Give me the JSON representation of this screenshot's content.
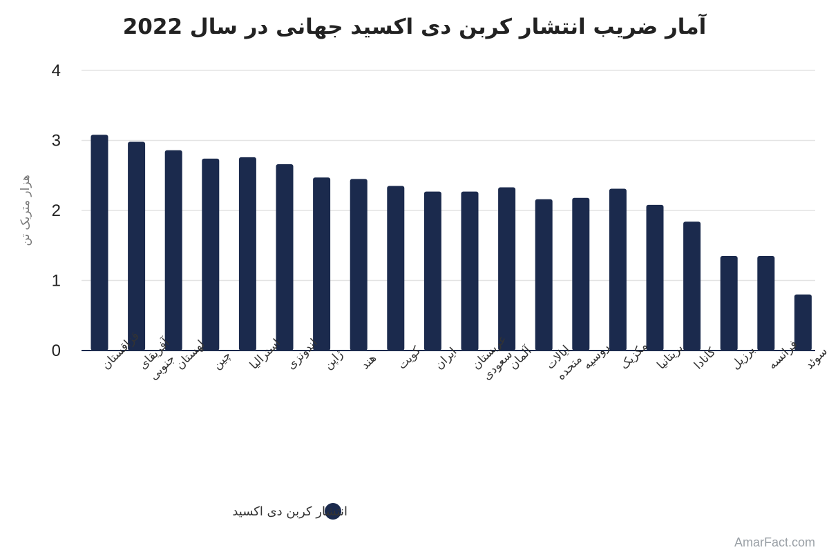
{
  "chart_data": {
    "type": "bar",
    "title": "آمار ضریب انتشار کربن دی اکسید جهانی در سال 2022",
    "ylabel": "هزار متریک تن",
    "xlabel": "",
    "ylim": [
      0,
      4
    ],
    "yticks": [
      "0",
      "1",
      "2",
      "3",
      "4"
    ],
    "grid": true,
    "legend_position": "bottom",
    "categories": [
      "قزاقستان",
      "آفریقای جنوبی",
      "لهستان",
      "چین",
      "استرالیا",
      "اندونزی",
      "ژاپن",
      "هند",
      "کویت",
      "ایران",
      "عربستان سعودی",
      "آلمان",
      "ایالات متحده",
      "روسیه",
      "مکزیک",
      "بریتانیا",
      "کانادا",
      "برزیل",
      "فرانسه",
      "سوئد"
    ],
    "series": [
      {
        "name": "انتشار کربن دی اکسید",
        "color": "#1b2a4d",
        "values": [
          3.08,
          2.98,
          2.86,
          2.74,
          2.76,
          2.66,
          2.47,
          2.45,
          2.35,
          2.27,
          2.27,
          2.33,
          2.16,
          2.18,
          2.31,
          2.08,
          1.84,
          1.35,
          1.35,
          0.8
        ]
      }
    ]
  },
  "watermark": "AmarFact.com"
}
